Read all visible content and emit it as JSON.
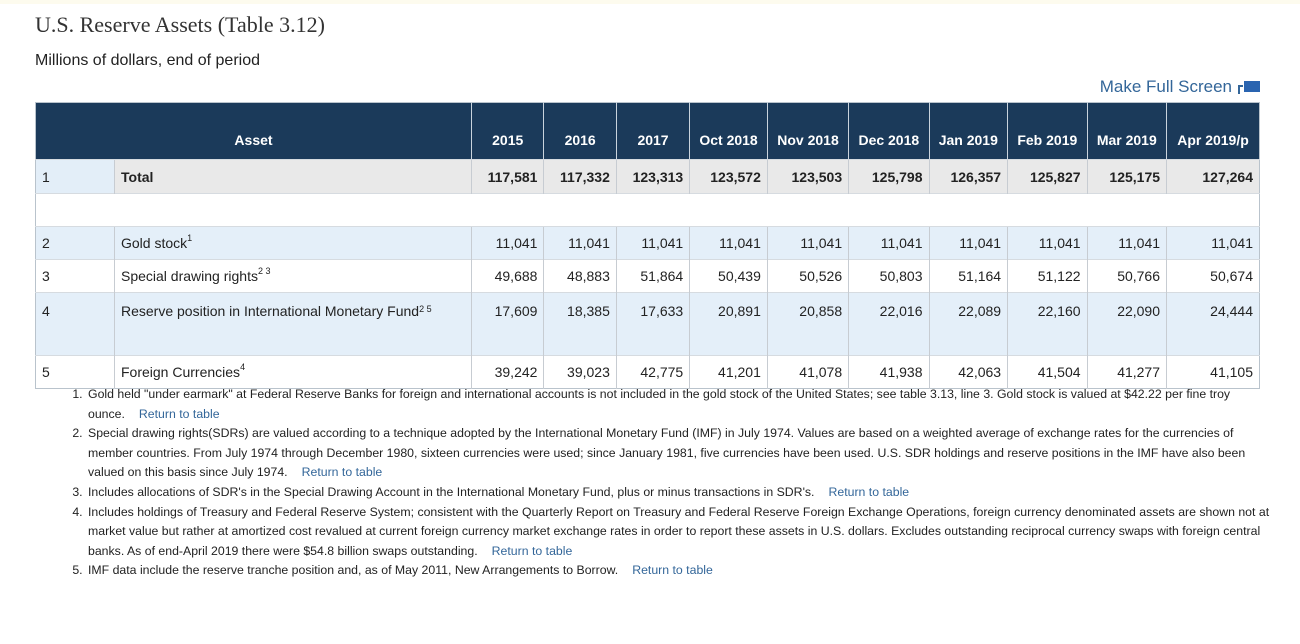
{
  "title": "U.S. Reserve Assets (Table 3.12)",
  "subtitle": "Millions of dollars, end of period",
  "fullscreen_label": "Make Full Screen",
  "table": {
    "asset_header": "Asset",
    "columns": [
      "2015",
      "2016",
      "2017",
      "Oct 2018",
      "Nov 2018",
      "Dec 2018",
      "Jan 2019",
      "Feb 2019",
      "Mar 2019",
      "Apr 2019/p"
    ],
    "total": {
      "num": "1",
      "name": "Total",
      "values": [
        "117,581",
        "117,332",
        "123,313",
        "123,572",
        "123,503",
        "125,798",
        "126,357",
        "125,827",
        "125,175",
        "127,264"
      ]
    },
    "rows": [
      {
        "num": "2",
        "name": "Gold stock",
        "sup": "1",
        "values": [
          "11,041",
          "11,041",
          "11,041",
          "11,041",
          "11,041",
          "11,041",
          "11,041",
          "11,041",
          "11,041",
          "11,041"
        ]
      },
      {
        "num": "3",
        "name": "Special drawing rights",
        "sup": "2 3",
        "values": [
          "49,688",
          "48,883",
          "51,864",
          "50,439",
          "50,526",
          "50,803",
          "51,164",
          "51,122",
          "50,766",
          "50,674"
        ]
      },
      {
        "num": "4",
        "name": "Reserve position in International Monetary Fund",
        "sup": "2 5",
        "values": [
          "17,609",
          "18,385",
          "17,633",
          "20,891",
          "20,858",
          "22,016",
          "22,089",
          "22,160",
          "22,090",
          "24,444"
        ]
      },
      {
        "num": "5",
        "name": "Foreign Currencies",
        "sup": "4",
        "values": [
          "39,242",
          "39,023",
          "42,775",
          "41,201",
          "41,078",
          "41,938",
          "42,063",
          "41,504",
          "41,277",
          "41,105"
        ]
      }
    ]
  },
  "footnotes": [
    "Gold held \"under earmark\" at Federal Reserve Banks for foreign and international accounts is not included in the gold stock of the United States; see table 3.13, line 3. Gold stock is valued at $42.22 per fine troy ounce.",
    "Special drawing rights(SDRs) are valued according to a technique adopted by the International Monetary Fund (IMF) in July 1974. Values are based on a weighted average of exchange rates for the currencies of member countries. From July 1974 through December 1980, sixteen currencies were used; since January 1981, five currencies have been used. U.S. SDR holdings and reserve positions in the IMF have also been valued on this basis since July 1974.",
    "Includes allocations of SDR's in the Special Drawing Account in the International Monetary Fund, plus or minus transactions in SDR's.",
    "Includes holdings of Treasury and Federal Reserve System; consistent with the Quarterly Report on Treasury and Federal Reserve Foreign Exchange Operations, foreign currency denominated assets are shown not at market value but rather at amortized cost revalued at current foreign currency market exchange rates in order to report these assets in U.S. dollars. Excludes outstanding reciprocal currency swaps with foreign central banks. As of end-April 2019 there were $54.8 billion swaps outstanding.",
    "IMF data include the reserve tranche position and, as of May 2011, New Arrangements to Borrow."
  ],
  "return_link": "Return to table"
}
